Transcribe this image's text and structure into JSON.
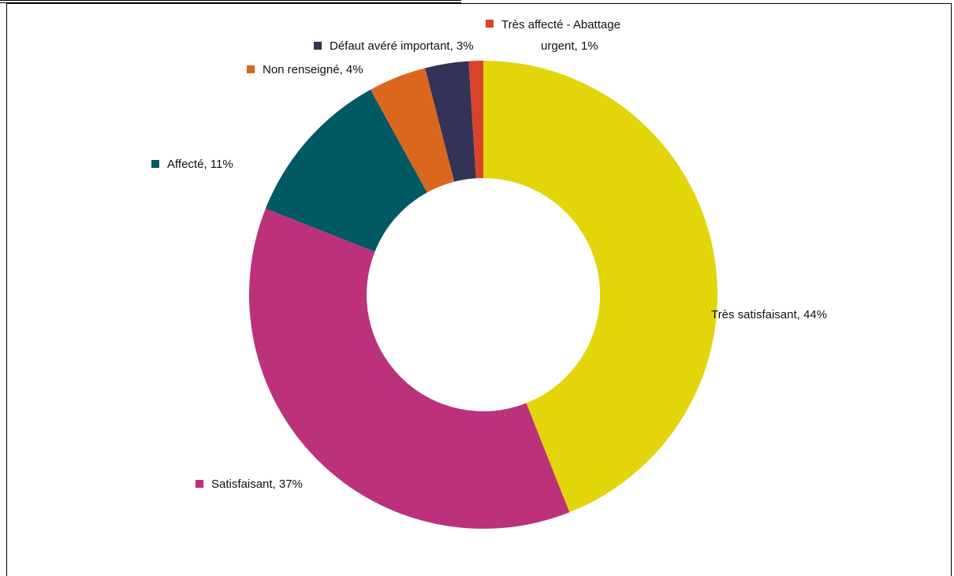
{
  "chart_data": {
    "type": "pie",
    "donut": true,
    "title": "",
    "slices": [
      {
        "label": "Très satisfaisant, 44%",
        "name": "Très satisfaisant",
        "value": 44,
        "color": "#e2d50a"
      },
      {
        "label": "Satisfaisant, 37%",
        "name": "Satisfaisant",
        "value": 37,
        "color": "#bc317b"
      },
      {
        "label": "Affecté, 11%",
        "name": "Affecté",
        "value": 11,
        "color": "#015964"
      },
      {
        "label": "Non renseigné, 4%",
        "name": "Non renseigné",
        "value": 4,
        "color": "#db671f"
      },
      {
        "label": "Défaut avéré important, 3%",
        "name": "Défaut avéré important",
        "value": 3,
        "color": "#333357"
      },
      {
        "label_lines": [
          "Très affecté - Abattage",
          "urgent, 1%"
        ],
        "name": "Très affecté - Abattage urgent",
        "value": 1,
        "color": "#d9432a"
      }
    ]
  }
}
